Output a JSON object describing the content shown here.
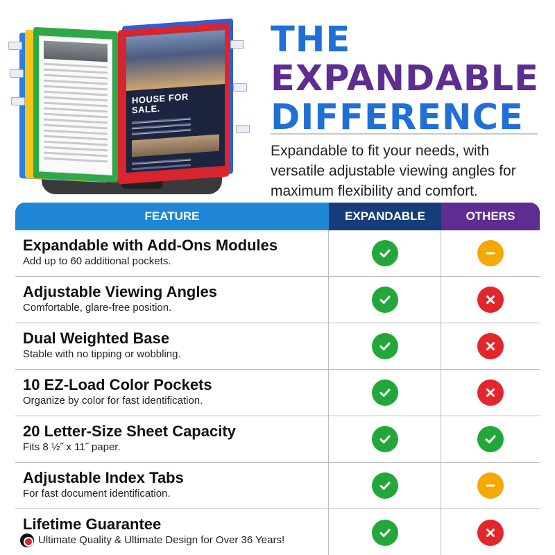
{
  "headline": {
    "line1": "THE",
    "line2": "EXPANDABLE",
    "line3": "DIFFERENCE"
  },
  "intro": "Expandable to fit your needs, with versatile adjustable viewing angles for maximum flexibility and comfort.",
  "product_image": {
    "flyer_title": "HOUSE FOR SALE."
  },
  "colors": {
    "header_feature": "#1f86d6",
    "header_expandable": "#173c7a",
    "header_others": "#5e2c92",
    "check": "#22a83a",
    "cross": "#e3262b",
    "dash": "#f5a800"
  },
  "table": {
    "headers": [
      "FEATURE",
      "EXPANDABLE",
      "OTHERS"
    ],
    "rows": [
      {
        "title": "Expandable with Add-Ons Modules",
        "subtitle": "Add up to 60 additional pockets.",
        "expandable": "check-icon",
        "others": "dash-icon"
      },
      {
        "title": "Adjustable Viewing Angles",
        "subtitle": "Comfortable, glare-free position.",
        "expandable": "check-icon",
        "others": "cross-icon"
      },
      {
        "title": "Dual Weighted Base",
        "subtitle": "Stable with no tipping or wobbling.",
        "expandable": "check-icon",
        "others": "cross-icon"
      },
      {
        "title": "10 EZ-Load Color Pockets",
        "subtitle": "Organize by color for fast identification.",
        "expandable": "check-icon",
        "others": "cross-icon"
      },
      {
        "title": "20 Letter-Size Sheet Capacity",
        "subtitle": "Fits 8 ½˝ x 11˝ paper.",
        "expandable": "check-icon",
        "others": "check-icon"
      },
      {
        "title": "Adjustable Index Tabs",
        "subtitle": "For fast document identification.",
        "expandable": "check-icon",
        "others": "dash-icon"
      },
      {
        "title": "Lifetime Guarantee",
        "subtitle": "Ultimate Quality & Ultimate Design for Over 36 Years!",
        "expandable": "check-icon",
        "others": "cross-icon"
      }
    ]
  }
}
